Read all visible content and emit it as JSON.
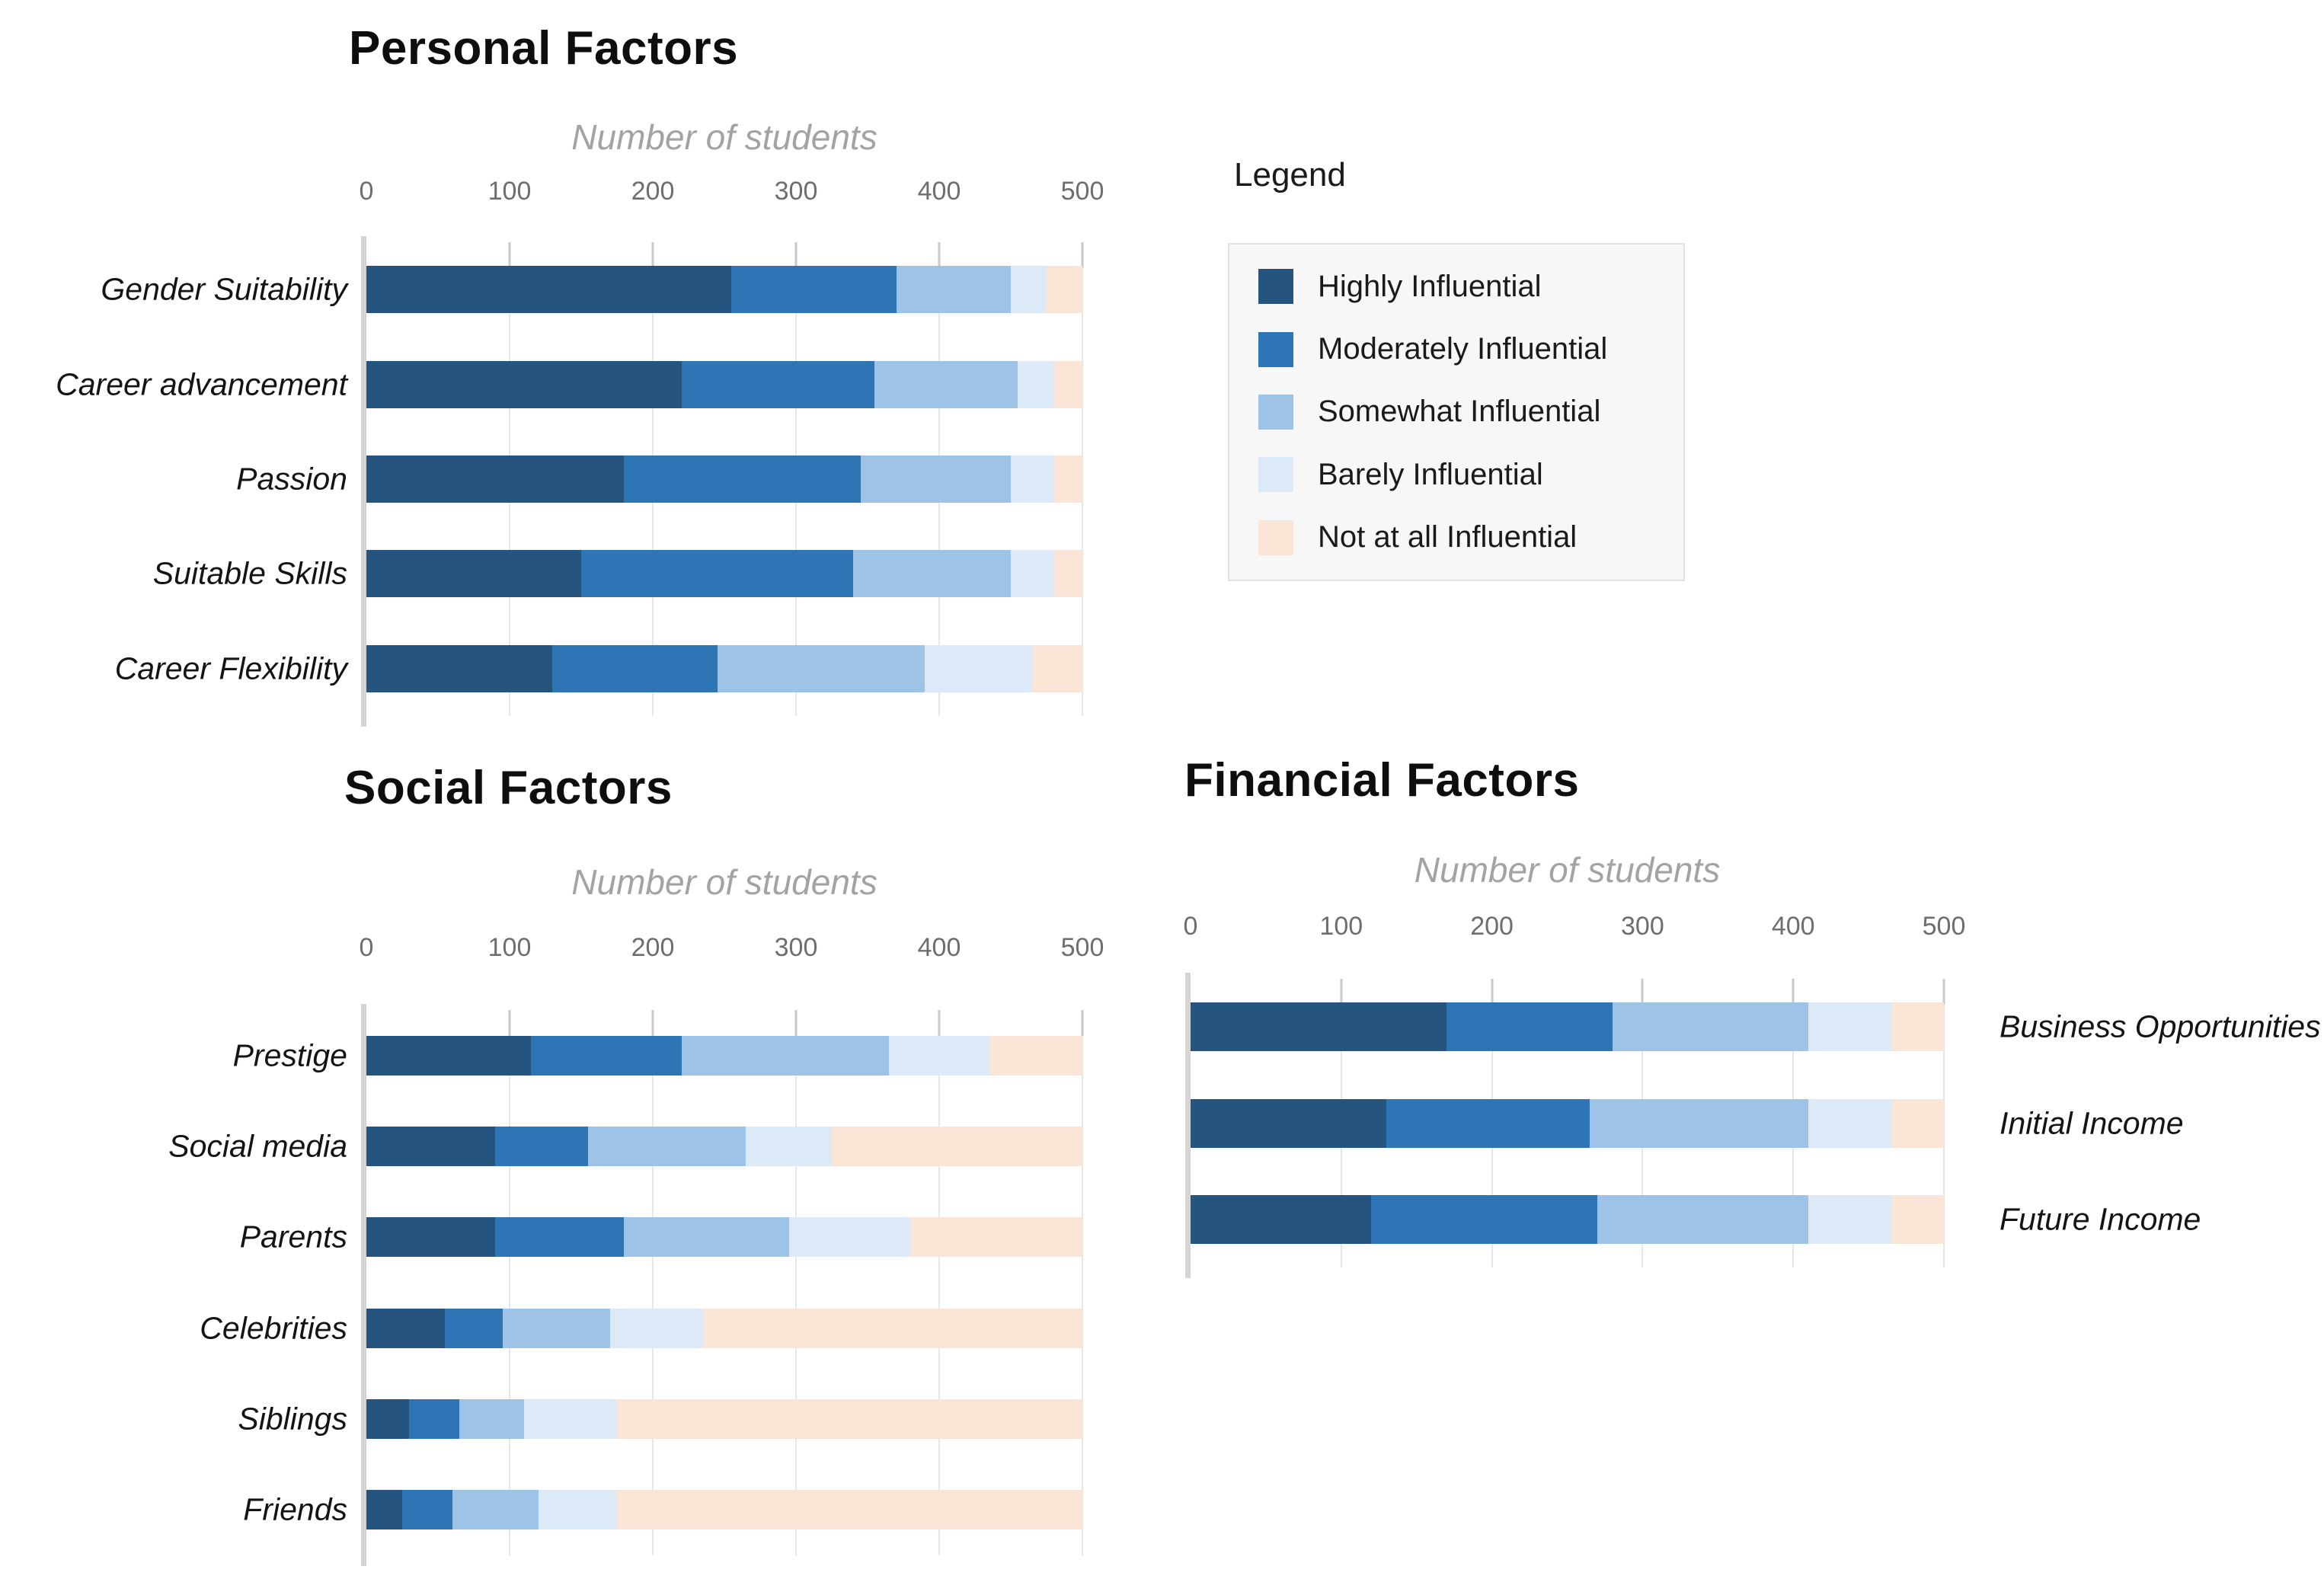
{
  "page": {
    "background": "#ffffff"
  },
  "legend": {
    "title": "Legend",
    "items": [
      {
        "label": "Highly Influential",
        "color": "#25557F"
      },
      {
        "label": "Moderately Influential",
        "color": "#2E75B6"
      },
      {
        "label": "Somewhat Influential",
        "color": "#9DC3E6"
      },
      {
        "label": "Barely Influential",
        "color": "#DCE9F6"
      },
      {
        "label": "Not at all Influential",
        "color": "#FAE5D6"
      }
    ]
  },
  "chart_data": [
    {
      "id": "personal-factors",
      "type": "bar",
      "stacked": true,
      "orientation": "horizontal",
      "title": "Personal Factors",
      "xlabel": "Number of students",
      "xlim": [
        0,
        500
      ],
      "xticks": [
        0,
        100,
        200,
        300,
        400,
        500
      ],
      "grid": true,
      "labels_side": "left",
      "categories": [
        "Gender Suitability",
        "Career advancement",
        "Passion",
        "Suitable Skills",
        "Career Flexibility"
      ],
      "series": [
        {
          "name": "Highly Influential",
          "values": [
            255,
            220,
            180,
            150,
            130
          ]
        },
        {
          "name": "Moderately Influential",
          "values": [
            115,
            135,
            165,
            190,
            115
          ]
        },
        {
          "name": "Somewhat Influential",
          "values": [
            80,
            100,
            105,
            110,
            145
          ]
        },
        {
          "name": "Barely Influential",
          "values": [
            25,
            25,
            30,
            30,
            75
          ]
        },
        {
          "name": "Not at all Influential",
          "values": [
            25,
            20,
            20,
            20,
            35
          ]
        }
      ]
    },
    {
      "id": "social-factors",
      "type": "bar",
      "stacked": true,
      "orientation": "horizontal",
      "title": "Social Factors",
      "xlabel": "Number of students",
      "xlim": [
        0,
        500
      ],
      "xticks": [
        0,
        100,
        200,
        300,
        400,
        500
      ],
      "grid": true,
      "labels_side": "left",
      "categories": [
        "Prestige",
        "Social media",
        "Parents",
        "Celebrities",
        "Siblings",
        "Friends"
      ],
      "series": [
        {
          "name": "Highly Influential",
          "values": [
            115,
            90,
            90,
            55,
            30,
            25
          ]
        },
        {
          "name": "Moderately Influential",
          "values": [
            105,
            65,
            90,
            40,
            35,
            35
          ]
        },
        {
          "name": "Somewhat Influential",
          "values": [
            145,
            110,
            115,
            75,
            45,
            60
          ]
        },
        {
          "name": "Barely Influential",
          "values": [
            70,
            60,
            85,
            65,
            65,
            55
          ]
        },
        {
          "name": "Not at all Influential",
          "values": [
            65,
            175,
            120,
            265,
            325,
            325
          ]
        }
      ]
    },
    {
      "id": "financial-factors",
      "type": "bar",
      "stacked": true,
      "orientation": "horizontal",
      "title": "Financial Factors",
      "xlabel": "Number of students",
      "xlim": [
        0,
        500
      ],
      "xticks": [
        0,
        100,
        200,
        300,
        400,
        500
      ],
      "grid": true,
      "labels_side": "right",
      "categories": [
        "Business Opportunities",
        "Initial Income",
        "Future Income"
      ],
      "series": [
        {
          "name": "Highly Influential",
          "values": [
            170,
            130,
            120
          ]
        },
        {
          "name": "Moderately Influential",
          "values": [
            110,
            135,
            150
          ]
        },
        {
          "name": "Somewhat Influential",
          "values": [
            130,
            145,
            140
          ]
        },
        {
          "name": "Barely Influential",
          "values": [
            55,
            55,
            55
          ]
        },
        {
          "name": "Not at all Influential",
          "values": [
            35,
            35,
            35
          ]
        }
      ]
    }
  ]
}
